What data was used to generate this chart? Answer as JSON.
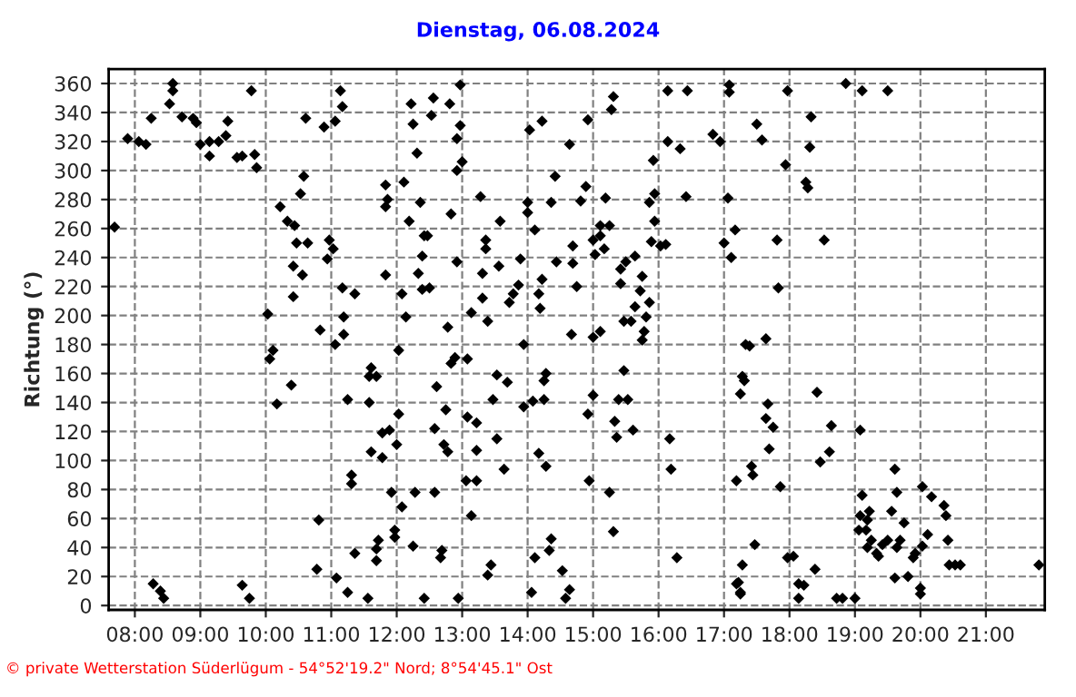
{
  "chart_data": {
    "type": "scatter",
    "title": "Dienstag, 06.08.2024",
    "ylabel": "Richtung (°)",
    "annotations": [
      "© private Wetterstation Süderlügum - 54°52'19.2\" Nord; 8°54'45.1\" Ost"
    ],
    "marker": "diamond",
    "grid": true,
    "xlim": [
      7.6,
      21.9
    ],
    "ylim": [
      -3,
      370
    ],
    "xticks": [
      {
        "value": 8,
        "label": "08:00"
      },
      {
        "value": 9,
        "label": "09:00"
      },
      {
        "value": 10,
        "label": "10:00"
      },
      {
        "value": 11,
        "label": "11:00"
      },
      {
        "value": 12,
        "label": "12:00"
      },
      {
        "value": 13,
        "label": "13:00"
      },
      {
        "value": 14,
        "label": "14:00"
      },
      {
        "value": 15,
        "label": "15:00"
      },
      {
        "value": 16,
        "label": "16:00"
      },
      {
        "value": 17,
        "label": "17:00"
      },
      {
        "value": 18,
        "label": "18:00"
      },
      {
        "value": 19,
        "label": "19:00"
      },
      {
        "value": 20,
        "label": "20:00"
      },
      {
        "value": 21,
        "label": "21:00"
      }
    ],
    "yticks": [
      0,
      20,
      40,
      60,
      80,
      100,
      120,
      140,
      160,
      180,
      200,
      220,
      240,
      260,
      280,
      300,
      320,
      340,
      360
    ],
    "series": [
      {
        "color": "#000000",
        "x": [
          7.69,
          7.89,
          8.06,
          8.17,
          8.25,
          8.53,
          8.58,
          8.58,
          8.72,
          8.89,
          8.94,
          8.28,
          8.39,
          8.44,
          9.0,
          9.14,
          9.28,
          9.39,
          9.14,
          9.42,
          9.56,
          9.64,
          9.83,
          9.86,
          9.78,
          9.64,
          9.75,
          10.58,
          10.53,
          10.22,
          10.33,
          10.44,
          10.47,
          10.64,
          10.42,
          10.56,
          10.42,
          10.03,
          10.11,
          10.06,
          10.39,
          10.17,
          10.61,
          10.89,
          11.06,
          11.14,
          11.17,
          10.97,
          11.03,
          10.94,
          11.17,
          11.36,
          10.83,
          11.19,
          11.19,
          11.06,
          11.61,
          11.58,
          11.69,
          11.25,
          11.58,
          12.03,
          11.89,
          11.78,
          12.0,
          11.78,
          11.61,
          11.31,
          11.31,
          11.92,
          12.28,
          12.08,
          10.81,
          11.97,
          11.97,
          11.72,
          11.69,
          11.36,
          11.69,
          12.25,
          10.78,
          11.08,
          11.25,
          11.56,
          12.42,
          12.22,
          12.25,
          12.31,
          12.11,
          11.83,
          11.83,
          11.86,
          12.36,
          12.19,
          12.42,
          12.39,
          11.83,
          12.33,
          12.08,
          12.39,
          12.14,
          12.03,
          12.97,
          12.56,
          12.81,
          12.53,
          12.97,
          12.92,
          13.0,
          12.92,
          13.28,
          12.83,
          12.47,
          12.92,
          12.5,
          13.58,
          13.36,
          13.36,
          13.56,
          13.31,
          13.14,
          13.39,
          12.78,
          13.31,
          12.89,
          12.83,
          13.08,
          12.61,
          12.75,
          13.08,
          13.22,
          12.58,
          12.72,
          12.78,
          13.22,
          13.53,
          13.64,
          13.53,
          13.69,
          13.47,
          13.06,
          13.22,
          12.58,
          13.14,
          12.69,
          12.67,
          13.44,
          13.39,
          12.94,
          14.03,
          14.22,
          14.64,
          14.92,
          14.42,
          14.89,
          14.81,
          15.19,
          14.36,
          14.0,
          14.0,
          14.11,
          14.44,
          13.89,
          14.69,
          14.69,
          13.78,
          13.72,
          13.86,
          14.22,
          14.17,
          14.19,
          14.75,
          13.94,
          14.67,
          15.0,
          15.11,
          14.28,
          14.25,
          14.25,
          14.08,
          13.94,
          14.92,
          15.0,
          14.17,
          14.28,
          14.94,
          15.25,
          15.31,
          14.36,
          14.33,
          14.11,
          14.06,
          14.53,
          14.64,
          14.58,
          15.31,
          15.28,
          15.11,
          15.25,
          15.11,
          15.0,
          15.03,
          15.17,
          15.5,
          15.42,
          15.64,
          15.75,
          15.42,
          15.72,
          15.86,
          15.64,
          15.47,
          15.58,
          15.81,
          15.78,
          15.75,
          15.47,
          15.53,
          15.39,
          15.61,
          15.36,
          15.33,
          15.92,
          15.94,
          15.86,
          15.94,
          15.89,
          16.03,
          16.11,
          16.14,
          16.44,
          16.14,
          16.33,
          16.42,
          17.06,
          16.17,
          16.19,
          16.28,
          16.83,
          16.94,
          17.08,
          17.08,
          17.0,
          17.11,
          17.17,
          17.33,
          17.28,
          17.25,
          17.19,
          17.22,
          17.25,
          17.28,
          17.97,
          18.86,
          19.11,
          19.5,
          17.5,
          17.58,
          18.33,
          18.31,
          17.94,
          18.25,
          18.28,
          17.81,
          18.53,
          17.83,
          17.39,
          17.64,
          17.31,
          18.42,
          17.67,
          17.64,
          17.75,
          18.64,
          19.08,
          17.69,
          18.61,
          18.47,
          17.42,
          17.44,
          17.86,
          19.61,
          20.03,
          20.17,
          19.64,
          19.11,
          19.22,
          19.56,
          20.36,
          20.39,
          19.08,
          19.19,
          19.75,
          19.06,
          19.17,
          19.25,
          19.42,
          19.5,
          19.69,
          20.11,
          20.42,
          19.19,
          19.33,
          19.64,
          19.92,
          20.03,
          19.36,
          19.89,
          20.53,
          20.44,
          20.61,
          21.81,
          17.97,
          18.06,
          18.39,
          17.47,
          19.61,
          19.81,
          20.0,
          20.0,
          17.19,
          17.25,
          18.14,
          18.22,
          18.14,
          18.72,
          18.81,
          19.0
        ],
        "values": [
          261,
          322,
          320,
          318,
          336,
          346,
          355,
          360,
          337,
          336,
          333,
          15,
          10,
          5,
          318,
          320,
          320,
          324,
          310,
          334,
          309,
          310,
          311,
          302,
          355,
          14,
          5,
          296,
          284,
          275,
          265,
          262,
          250,
          250,
          234,
          228,
          213,
          201,
          176,
          170,
          152,
          139,
          336,
          330,
          334,
          355,
          344,
          252,
          246,
          239,
          219,
          215,
          190,
          199,
          187,
          180,
          164,
          158,
          158,
          142,
          140,
          132,
          121,
          119,
          111,
          102,
          106,
          90,
          84,
          78,
          78,
          68,
          59,
          52,
          47,
          45,
          39,
          36,
          31,
          41,
          25,
          19,
          9,
          5,
          5,
          346,
          332,
          312,
          292,
          290,
          275,
          280,
          278,
          265,
          255,
          241,
          228,
          229,
          215,
          218,
          199,
          176,
          359,
          350,
          346,
          338,
          331,
          322,
          306,
          300,
          282,
          270,
          255,
          237,
          219,
          265,
          252,
          246,
          234,
          229,
          202,
          196,
          192,
          212,
          171,
          167,
          170,
          151,
          135,
          130,
          126,
          122,
          111,
          106,
          107,
          115,
          94,
          159,
          154,
          142,
          86,
          86,
          78,
          62,
          38,
          33,
          28,
          21,
          5,
          328,
          334,
          318,
          335,
          296,
          289,
          279,
          281,
          278,
          278,
          271,
          259,
          237,
          239,
          248,
          236,
          215,
          209,
          221,
          225,
          215,
          205,
          220,
          180,
          187,
          185,
          189,
          160,
          155,
          142,
          141,
          137,
          132,
          145,
          105,
          96,
          86,
          78,
          51,
          46,
          38,
          33,
          9,
          24,
          11,
          5,
          351,
          342,
          262,
          262,
          255,
          252,
          242,
          246,
          237,
          232,
          241,
          227,
          222,
          217,
          209,
          206,
          196,
          196,
          199,
          189,
          183,
          162,
          142,
          142,
          121,
          116,
          127,
          307,
          284,
          278,
          265,
          251,
          248,
          249,
          355,
          355,
          320,
          315,
          282,
          281,
          115,
          94,
          33,
          325,
          320,
          359,
          354,
          250,
          240,
          259,
          180,
          158,
          146,
          86,
          16,
          9,
          28,
          355,
          360,
          355,
          355,
          332,
          321,
          337,
          316,
          304,
          292,
          288,
          252,
          252,
          219,
          179,
          184,
          155,
          147,
          139,
          129,
          123,
          124,
          121,
          108,
          106,
          99,
          96,
          90,
          82,
          94,
          82,
          75,
          78,
          76,
          65,
          65,
          69,
          62,
          62,
          59,
          57,
          52,
          52,
          45,
          42,
          45,
          45,
          49,
          45,
          40,
          36,
          40,
          36,
          41,
          34,
          33,
          28,
          28,
          28,
          28,
          33,
          34,
          25,
          42,
          19,
          20,
          12,
          8,
          15,
          8,
          15,
          14,
          5,
          5,
          5,
          5
        ]
      }
    ]
  }
}
